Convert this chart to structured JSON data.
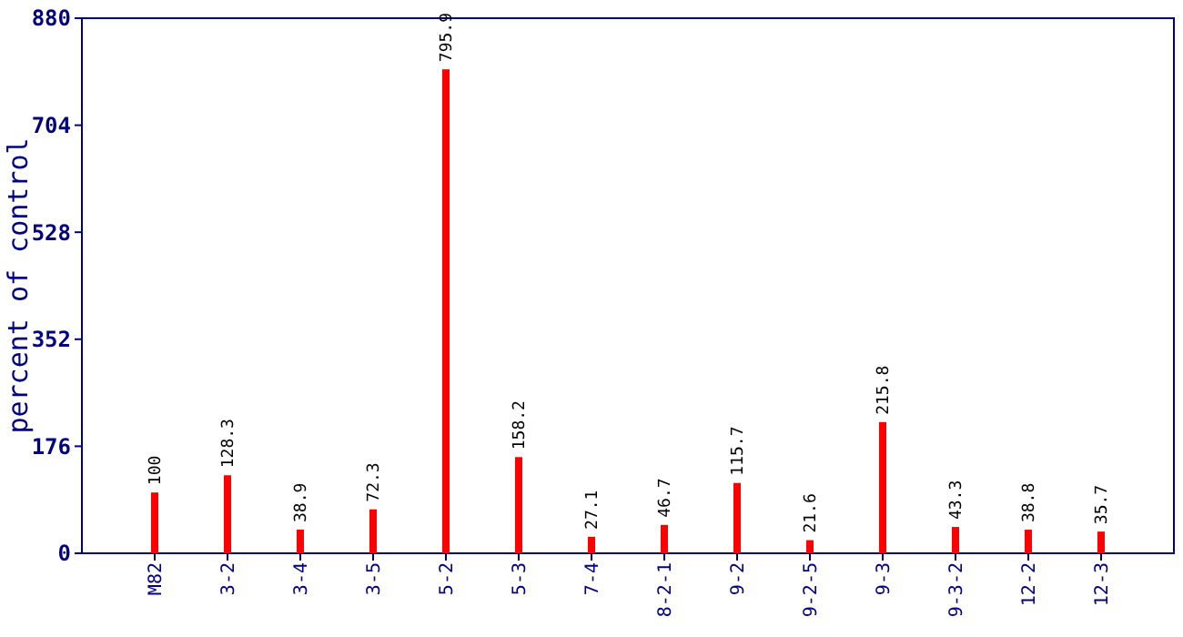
{
  "chart_data": {
    "type": "bar",
    "ylabel": "percent of control",
    "categories": [
      "M82",
      "3-2",
      "3-4",
      "3-5",
      "5-2",
      "5-3",
      "7-4",
      "8-2-1",
      "9-2",
      "9-2-5",
      "9-3",
      "9-3-2",
      "12-2",
      "12-3"
    ],
    "values": [
      100,
      128.3,
      38.9,
      72.3,
      795.9,
      158.2,
      27.1,
      46.7,
      115.7,
      21.6,
      215.8,
      43.3,
      38.8,
      35.7
    ],
    "color": "#ff0000",
    "ylim": [
      0,
      880
    ],
    "yticks": [
      0,
      176,
      352,
      528,
      704,
      880
    ],
    "data_labels": true,
    "grid": false
  }
}
